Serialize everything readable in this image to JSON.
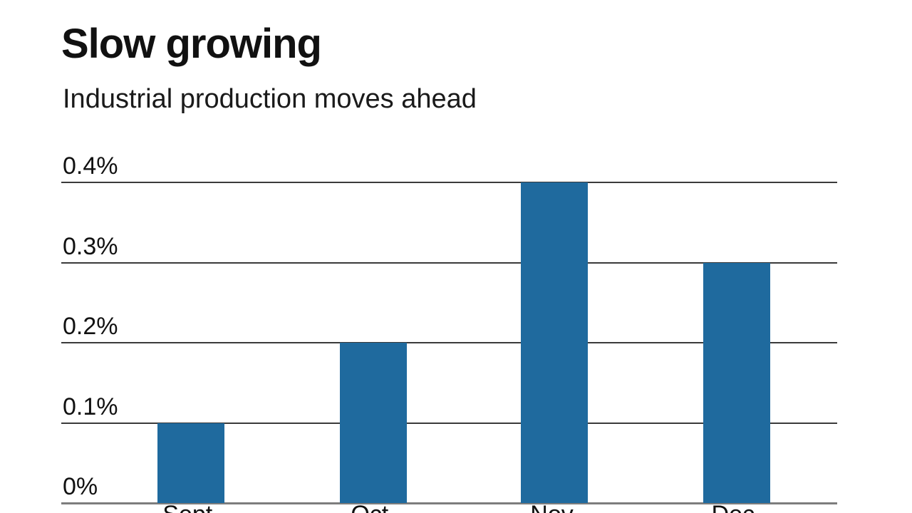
{
  "header": {
    "title": "Slow growing",
    "subtitle": "Industrial production moves ahead"
  },
  "chart_data": {
    "type": "bar",
    "title": "Slow growing",
    "subtitle": "Industrial production moves ahead",
    "categories": [
      "Sept.",
      "Oct.",
      "Nov.",
      "Dec."
    ],
    "values": [
      0.1,
      0.2,
      0.4,
      0.3
    ],
    "unit": "%",
    "xlabel": "",
    "ylabel": "",
    "ylim": [
      0,
      0.4
    ],
    "yticks": [
      0,
      0.1,
      0.2,
      0.3,
      0.4
    ],
    "ytick_labels": [
      "0%",
      "0.1%",
      "0.2%",
      "0.3%",
      "0.4%"
    ],
    "grid": true,
    "legend": false,
    "colors": {
      "bar": "#1f6a9e",
      "gridline": "#3a3a3a",
      "baseline": "#7d7d7d",
      "text": "#111111"
    }
  }
}
